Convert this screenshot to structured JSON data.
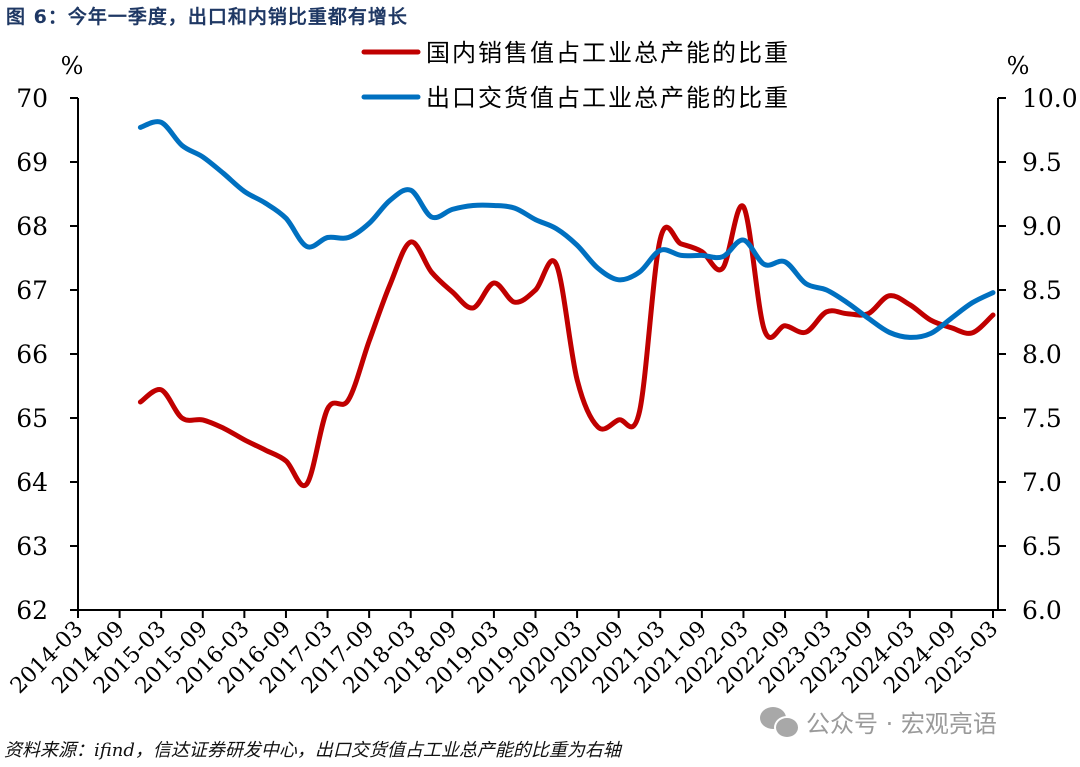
{
  "figure": {
    "title": "图 6：今年一季度，出口和内销比重都有增长",
    "source": "资料来源：ifind，信达证券研发中心，出口交货值占工业总产能的比重为右轴",
    "watermark": "公众号 · 宏观亮语"
  },
  "colors": {
    "domestic": "#c00000",
    "export": "#0070c0",
    "title": "#1f3864",
    "axis": "#000000"
  },
  "chart_data": {
    "type": "line",
    "title": "今年一季度，出口和内销比重都有增长",
    "xlabel": "",
    "ylabel_left": "%",
    "ylabel_right": "%",
    "ylim_left": [
      62,
      70
    ],
    "ylim_right": [
      6.0,
      10.0
    ],
    "yticks_left": [
      "62",
      "63",
      "64",
      "65",
      "66",
      "67",
      "68",
      "69",
      "70"
    ],
    "yticks_right": [
      "6.0",
      "6.5",
      "7.0",
      "7.5",
      "8.0",
      "8.5",
      "9.0",
      "9.5",
      "10.0"
    ],
    "xticks": [
      "2014-03",
      "2014-09",
      "2015-03",
      "2015-09",
      "2016-03",
      "2016-09",
      "2017-03",
      "2017-09",
      "2018-03",
      "2018-09",
      "2019-03",
      "2019-09",
      "2020-03",
      "2020-09",
      "2021-03",
      "2021-09",
      "2022-03",
      "2022-09",
      "2023-03",
      "2023-09",
      "2024-03",
      "2024-09",
      "2025-03"
    ],
    "grid": false,
    "legend_position": "top-center",
    "x": [
      "2014-12",
      "2015-03",
      "2015-06",
      "2015-09",
      "2015-12",
      "2016-03",
      "2016-06",
      "2016-09",
      "2016-12",
      "2017-03",
      "2017-06",
      "2017-09",
      "2017-12",
      "2018-03",
      "2018-06",
      "2018-09",
      "2018-12",
      "2019-03",
      "2019-06",
      "2019-09",
      "2019-12",
      "2020-03",
      "2020-06",
      "2020-09",
      "2020-12",
      "2021-03",
      "2021-06",
      "2021-09",
      "2021-12",
      "2022-03",
      "2022-06",
      "2022-09",
      "2022-12",
      "2023-03",
      "2023-06",
      "2023-09",
      "2023-12",
      "2024-03",
      "2024-06",
      "2024-09",
      "2024-12",
      "2025-03"
    ],
    "series": [
      {
        "name": "国内销售值占工业总产能的比重",
        "axis": "left",
        "color": "#c00000",
        "values": [
          65.25,
          65.44,
          65.0,
          64.97,
          64.84,
          64.66,
          64.5,
          64.33,
          63.97,
          65.14,
          65.28,
          66.2,
          67.08,
          67.75,
          67.28,
          66.97,
          66.72,
          67.11,
          66.81,
          67.0,
          67.4,
          65.6,
          64.86,
          64.97,
          65.1,
          67.8,
          67.72,
          67.6,
          67.34,
          68.3,
          66.38,
          66.44,
          66.34,
          66.66,
          66.63,
          66.63,
          66.91,
          66.77,
          66.53,
          66.41,
          66.33,
          66.61
        ]
      },
      {
        "name": "出口交货值占工业总产能的比重",
        "axis": "right",
        "color": "#0070c0",
        "values": [
          9.77,
          9.81,
          9.63,
          9.54,
          9.41,
          9.27,
          9.18,
          9.06,
          8.84,
          8.91,
          8.91,
          9.02,
          9.2,
          9.28,
          9.07,
          9.13,
          9.16,
          9.16,
          9.14,
          9.05,
          8.98,
          8.85,
          8.67,
          8.58,
          8.64,
          8.81,
          8.77,
          8.77,
          8.76,
          8.89,
          8.7,
          8.72,
          8.55,
          8.5,
          8.4,
          8.28,
          8.17,
          8.13,
          8.16,
          8.28,
          8.4,
          8.48
        ]
      }
    ]
  }
}
